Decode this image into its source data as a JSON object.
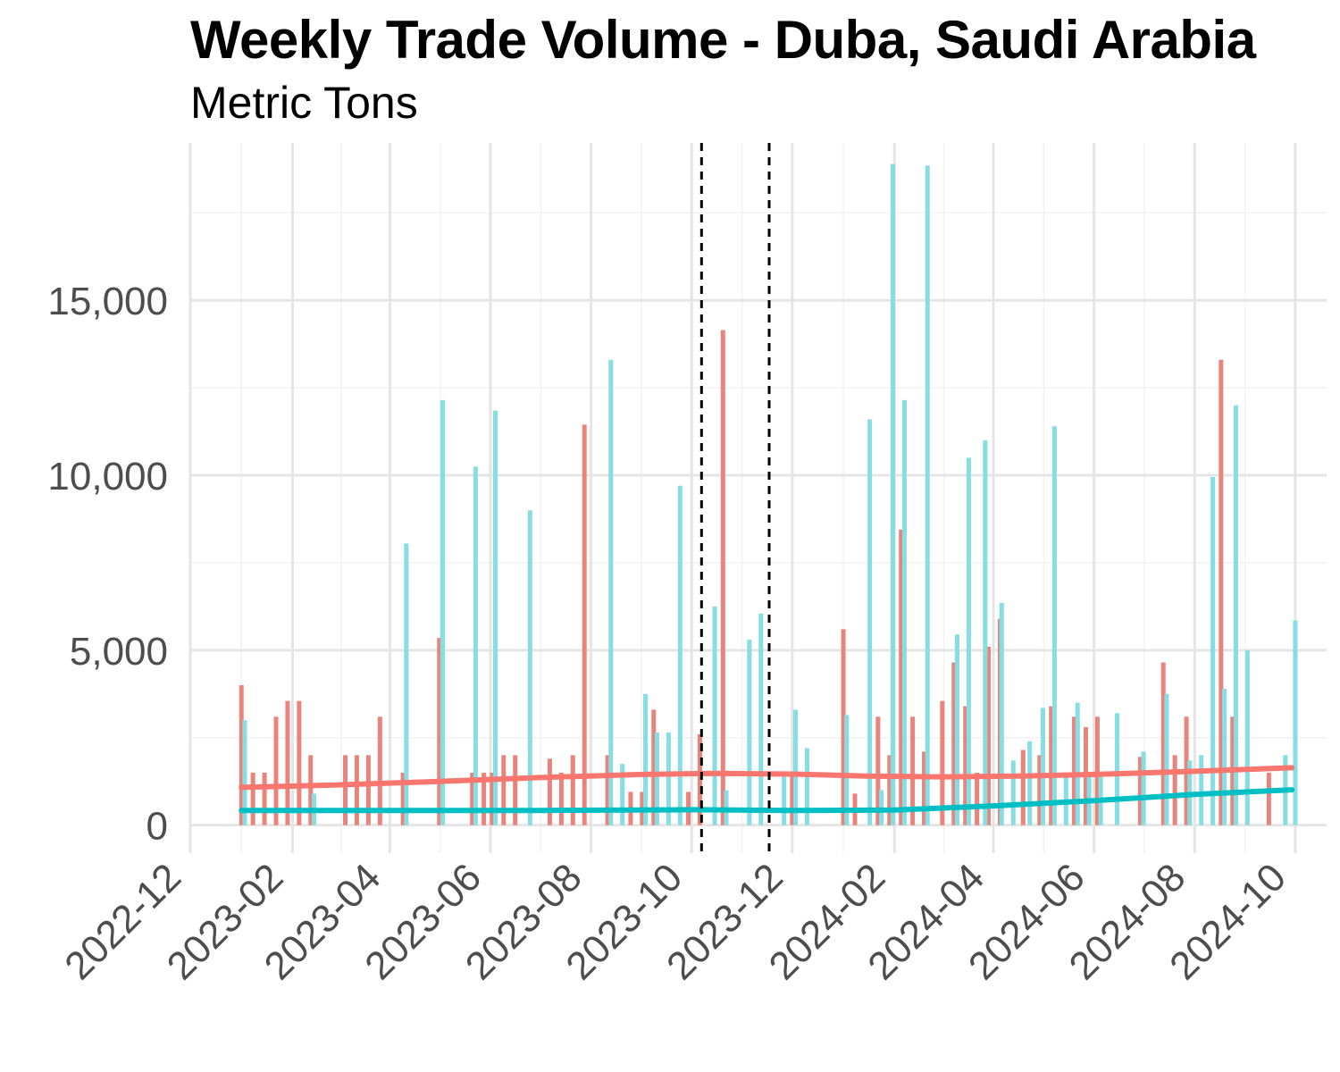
{
  "chart_data": {
    "type": "bar",
    "title": "Weekly Trade Volume - Duba, Saudi Arabia",
    "subtitle": "Metric Tons",
    "xlabel": "",
    "ylabel": "",
    "x_range": [
      "2022-12-01",
      "2024-10-20"
    ],
    "ylim": [
      -800,
      19500
    ],
    "y_ticks": [
      0,
      5000,
      10000,
      15000
    ],
    "y_tick_labels": [
      "0",
      "5,000",
      "10,000",
      "15,000"
    ],
    "x_ticks": [
      "2022-12-01",
      "2023-02-01",
      "2023-04-01",
      "2023-06-01",
      "2023-08-01",
      "2023-10-01",
      "2023-12-01",
      "2024-02-01",
      "2024-04-01",
      "2024-06-01",
      "2024-08-01",
      "2024-10-01"
    ],
    "x_tick_labels": [
      "2022-12",
      "2023-02",
      "2023-04",
      "2023-06",
      "2023-08",
      "2023-10",
      "2023-12",
      "2024-02",
      "2024-04",
      "2024-06",
      "2024-08",
      "2024-10"
    ],
    "grid": true,
    "legend": "none",
    "vlines": [
      "2023-10-07",
      "2023-11-17"
    ],
    "series": [
      {
        "color": "#f8766d",
        "points": [
          [
            "2023-01-01",
            4000
          ],
          [
            "2023-01-08",
            1500
          ],
          [
            "2023-01-15",
            1500
          ],
          [
            "2023-01-22",
            3100
          ],
          [
            "2023-01-29",
            3550
          ],
          [
            "2023-02-05",
            3550
          ],
          [
            "2023-02-12",
            2000
          ],
          [
            "2023-03-05",
            2000
          ],
          [
            "2023-03-12",
            2000
          ],
          [
            "2023-03-19",
            2000
          ],
          [
            "2023-03-26",
            3100
          ],
          [
            "2023-04-09",
            1500
          ],
          [
            "2023-05-01",
            5350
          ],
          [
            "2023-05-21",
            1500
          ],
          [
            "2023-05-28",
            1500
          ],
          [
            "2023-06-02",
            1500
          ],
          [
            "2023-06-09",
            2000
          ],
          [
            "2023-06-16",
            2000
          ],
          [
            "2023-07-07",
            1900
          ],
          [
            "2023-07-14",
            1500
          ],
          [
            "2023-07-21",
            2000
          ],
          [
            "2023-07-28",
            11450
          ],
          [
            "2023-08-11",
            2000
          ],
          [
            "2023-08-25",
            950
          ],
          [
            "2023-09-01",
            950
          ],
          [
            "2023-09-08",
            3300
          ],
          [
            "2023-09-29",
            950
          ],
          [
            "2023-10-06",
            2600
          ],
          [
            "2023-10-20",
            14150
          ],
          [
            "2023-12-01",
            1500
          ],
          [
            "2024-01-01",
            5600
          ],
          [
            "2024-01-08",
            900
          ],
          [
            "2024-01-22",
            3100
          ],
          [
            "2024-01-29",
            2000
          ],
          [
            "2024-02-05",
            8450
          ],
          [
            "2024-02-12",
            3100
          ],
          [
            "2024-02-19",
            2100
          ],
          [
            "2024-03-01",
            3550
          ],
          [
            "2024-03-08",
            4650
          ],
          [
            "2024-03-15",
            3400
          ],
          [
            "2024-03-22",
            1500
          ],
          [
            "2024-03-29",
            5100
          ],
          [
            "2024-04-05",
            5900
          ],
          [
            "2024-04-19",
            2150
          ],
          [
            "2024-04-29",
            2000
          ],
          [
            "2024-05-06",
            3400
          ],
          [
            "2024-05-20",
            3100
          ],
          [
            "2024-05-27",
            2800
          ],
          [
            "2024-06-03",
            3100
          ],
          [
            "2024-06-29",
            1950
          ],
          [
            "2024-07-13",
            4650
          ],
          [
            "2024-07-20",
            2000
          ],
          [
            "2024-07-27",
            3100
          ],
          [
            "2024-08-17",
            13300
          ],
          [
            "2024-08-24",
            3100
          ],
          [
            "2024-09-15",
            1500
          ]
        ],
        "trend": [
          [
            "2023-01-01",
            1080
          ],
          [
            "2023-03-01",
            1150
          ],
          [
            "2023-05-01",
            1250
          ],
          [
            "2023-07-01",
            1360
          ],
          [
            "2023-09-01",
            1450
          ],
          [
            "2023-10-15",
            1480
          ],
          [
            "2023-12-01",
            1460
          ],
          [
            "2024-01-15",
            1400
          ],
          [
            "2024-03-01",
            1380
          ],
          [
            "2024-04-15",
            1400
          ],
          [
            "2024-06-01",
            1450
          ],
          [
            "2024-08-01",
            1540
          ],
          [
            "2024-09-29",
            1640
          ]
        ]
      },
      {
        "color": "#00bfc4",
        "points": [
          [
            "2023-01-03",
            3000
          ],
          [
            "2023-02-14",
            900
          ],
          [
            "2023-04-11",
            8050
          ],
          [
            "2023-05-03",
            12150
          ],
          [
            "2023-05-23",
            10250
          ],
          [
            "2023-06-04",
            11850
          ],
          [
            "2023-06-25",
            9000
          ],
          [
            "2023-08-13",
            13300
          ],
          [
            "2023-08-20",
            1750
          ],
          [
            "2023-09-03",
            3750
          ],
          [
            "2023-09-10",
            2650
          ],
          [
            "2023-09-17",
            2650
          ],
          [
            "2023-09-24",
            9700
          ],
          [
            "2023-10-15",
            6250
          ],
          [
            "2023-10-22",
            1000
          ],
          [
            "2023-11-05",
            5300
          ],
          [
            "2023-11-12",
            6050
          ],
          [
            "2023-11-26",
            1500
          ],
          [
            "2023-12-03",
            3300
          ],
          [
            "2023-12-10",
            2200
          ],
          [
            "2024-01-03",
            3150
          ],
          [
            "2024-01-17",
            11600
          ],
          [
            "2024-01-24",
            1000
          ],
          [
            "2024-01-31",
            18900
          ],
          [
            "2024-02-07",
            12150
          ],
          [
            "2024-02-21",
            18850
          ],
          [
            "2024-03-10",
            5450
          ],
          [
            "2024-03-17",
            10500
          ],
          [
            "2024-03-27",
            11000
          ],
          [
            "2024-04-06",
            6350
          ],
          [
            "2024-04-13",
            1850
          ],
          [
            "2024-04-23",
            2400
          ],
          [
            "2024-05-01",
            3350
          ],
          [
            "2024-05-08",
            11400
          ],
          [
            "2024-05-15",
            1500
          ],
          [
            "2024-05-22",
            3500
          ],
          [
            "2024-05-29",
            1500
          ],
          [
            "2024-06-05",
            1500
          ],
          [
            "2024-06-15",
            3200
          ],
          [
            "2024-07-01",
            2100
          ],
          [
            "2024-07-15",
            3750
          ],
          [
            "2024-07-29",
            1850
          ],
          [
            "2024-08-05",
            2000
          ],
          [
            "2024-08-12",
            9950
          ],
          [
            "2024-08-19",
            3900
          ],
          [
            "2024-08-26",
            12000
          ],
          [
            "2024-09-02",
            5000
          ],
          [
            "2024-09-25",
            2000
          ],
          [
            "2024-10-01",
            5850
          ]
        ],
        "trend": [
          [
            "2023-01-01",
            420
          ],
          [
            "2023-04-01",
            420
          ],
          [
            "2023-07-01",
            420
          ],
          [
            "2023-10-01",
            440
          ],
          [
            "2023-12-01",
            420
          ],
          [
            "2024-02-01",
            430
          ],
          [
            "2024-04-01",
            550
          ],
          [
            "2024-06-01",
            700
          ],
          [
            "2024-08-01",
            880
          ],
          [
            "2024-09-29",
            1010
          ]
        ]
      }
    ]
  }
}
